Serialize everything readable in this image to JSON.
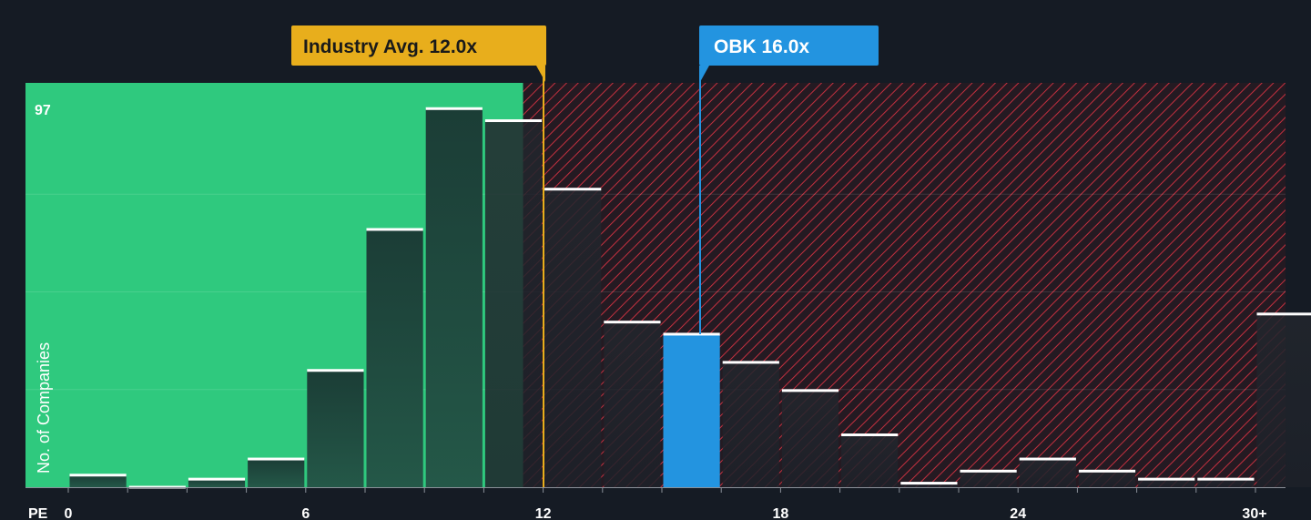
{
  "chart_data": {
    "type": "bar",
    "xlabel": "PE",
    "ylabel": "No. of Companies",
    "y_max_label": "97",
    "ylim": [
      0,
      97
    ],
    "xlim": [
      -1.5,
      30.5
    ],
    "x_ticks": [
      {
        "value": 0,
        "label": "0"
      },
      {
        "value": 6,
        "label": "6"
      },
      {
        "value": 12,
        "label": "12"
      },
      {
        "value": 18,
        "label": "18"
      },
      {
        "value": 24,
        "label": "24"
      },
      {
        "value": 30,
        "label": "30+"
      }
    ],
    "bins": [
      {
        "x0": 0,
        "x1": 1.5,
        "value": 3
      },
      {
        "x0": 1.5,
        "x1": 3,
        "value": 0
      },
      {
        "x0": 3,
        "x1": 4.5,
        "value": 2
      },
      {
        "x0": 4.5,
        "x1": 6,
        "value": 7
      },
      {
        "x0": 6,
        "x1": 7.5,
        "value": 29
      },
      {
        "x0": 7.5,
        "x1": 9,
        "value": 64
      },
      {
        "x0": 9,
        "x1": 10.5,
        "value": 94
      },
      {
        "x0": 10.5,
        "x1": 12,
        "value": 91
      },
      {
        "x0": 12,
        "x1": 13.5,
        "value": 74
      },
      {
        "x0": 13.5,
        "x1": 15,
        "value": 41
      },
      {
        "x0": 15,
        "x1": 16.5,
        "value": 38,
        "highlight": true
      },
      {
        "x0": 16.5,
        "x1": 18,
        "value": 31
      },
      {
        "x0": 18,
        "x1": 19.5,
        "value": 24
      },
      {
        "x0": 19.5,
        "x1": 21,
        "value": 13
      },
      {
        "x0": 21,
        "x1": 22.5,
        "value": 1
      },
      {
        "x0": 22.5,
        "x1": 24,
        "value": 4
      },
      {
        "x0": 24,
        "x1": 25.5,
        "value": 7
      },
      {
        "x0": 25.5,
        "x1": 27,
        "value": 4
      },
      {
        "x0": 27,
        "x1": 28.5,
        "value": 2
      },
      {
        "x0": 28.5,
        "x1": 30,
        "value": 2
      },
      {
        "x0": 30,
        "x1": 31.5,
        "value": 43
      }
    ],
    "annotations": [
      {
        "label": "Industry Avg. 12.0x",
        "value": 12.0,
        "color": "#e8ae1c"
      },
      {
        "label": "OBK 16.0x",
        "value": 16.0,
        "color": "#2394e0"
      }
    ],
    "grid": true,
    "undervalued_zone_color": "#2fc97e",
    "overvalued_zone_color": "#c4303f",
    "highlight_bar_color": "#2394e0",
    "bar_color": "#1c2d2e"
  }
}
